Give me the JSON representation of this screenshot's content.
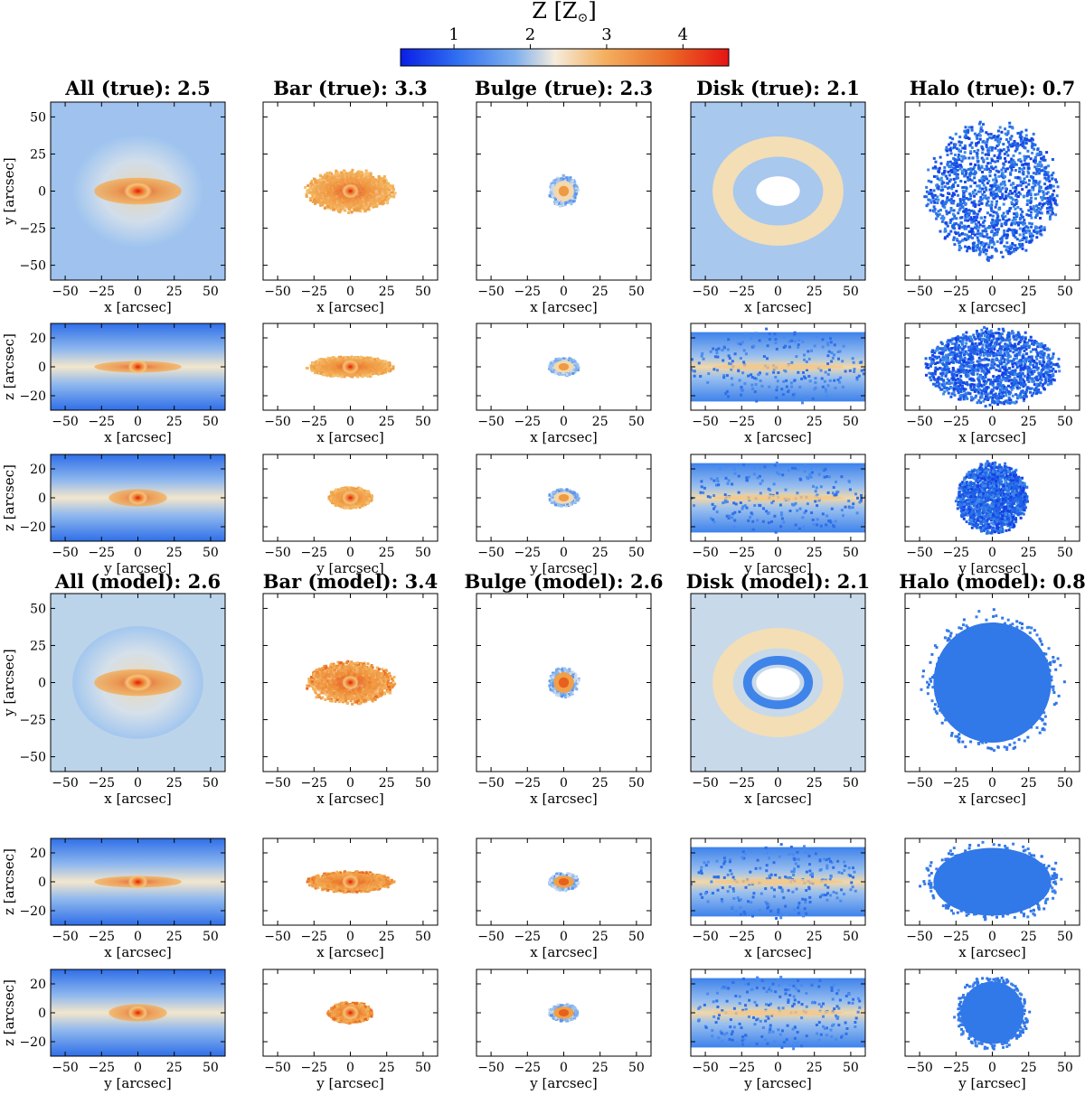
{
  "colorbar": {
    "label_main": "Z [Z",
    "label_sub": "⊙",
    "label_end": "]",
    "min": 0.3,
    "max": 4.6,
    "ticks": [
      "1",
      "2",
      "3",
      "4"
    ],
    "colors": [
      "#0a1ee6",
      "#2f6ef0",
      "#7fb0ee",
      "#f5ecdc",
      "#f4b060",
      "#ea6a26",
      "#e51414"
    ]
  },
  "titles": {
    "true": [
      "All (true): 2.5",
      "Bar (true): 3.3",
      "Bulge (true): 2.3",
      "Disk (true): 2.1",
      "Halo (true): 0.7"
    ],
    "model": [
      "All (model): 2.6",
      "Bar (model): 3.4",
      "Bulge (model): 2.6",
      "Disk (model): 2.1",
      "Halo (model): 0.8"
    ]
  },
  "axis_labels": {
    "x": "x [arcsec]",
    "y": "y [arcsec]",
    "z": "z [arcsec]"
  },
  "x_ticks": [
    "−50",
    "−25",
    "0",
    "25",
    "50"
  ],
  "y_ticks_face_on": [
    "50",
    "25",
    "0",
    "−25",
    "−50"
  ],
  "y_ticks_edge_on": [
    "20",
    "0",
    "−20"
  ],
  "chart_data": {
    "type": "heatmap",
    "description_of_panels": "6 rows (3 projections true, 3 projections model) x 5 components",
    "components": [
      "All",
      "Bar",
      "Bulge",
      "Disk",
      "Halo"
    ],
    "projections": [
      "x-y",
      "x-z",
      "y-z"
    ],
    "mean_metallicity_true": [
      2.5,
      3.3,
      2.3,
      2.1,
      0.7
    ],
    "mean_metallicity_model": [
      2.6,
      3.4,
      2.6,
      2.1,
      0.8
    ],
    "xlim": [
      -60,
      60
    ],
    "ylim_face_on": [
      -60,
      60
    ],
    "ylim_edge_on": [
      -30,
      30
    ],
    "colorbar_range": [
      0.3,
      4.6
    ]
  }
}
